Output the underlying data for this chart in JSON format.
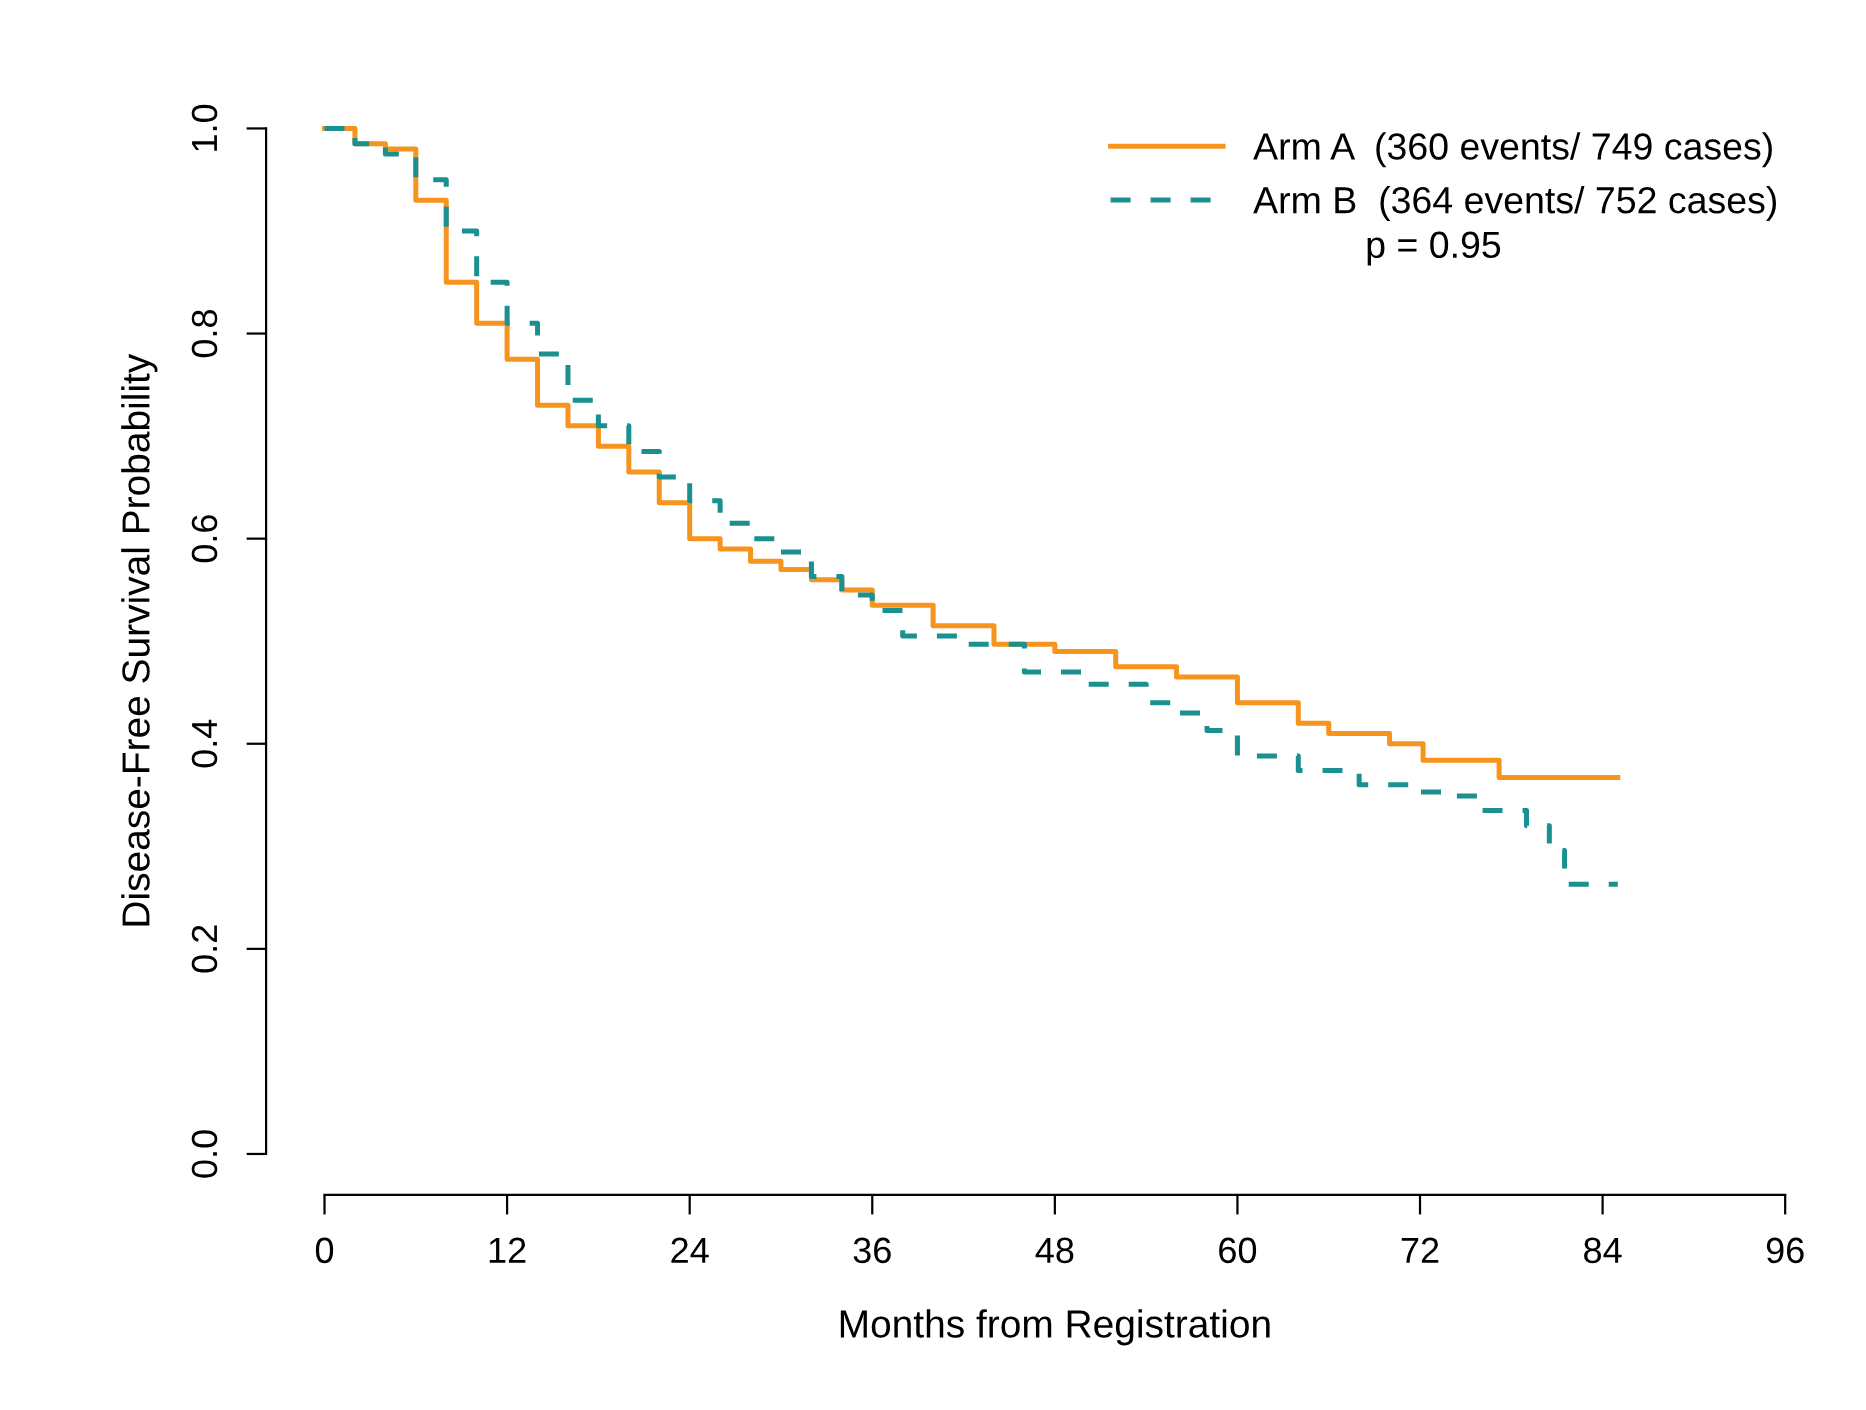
{
  "chart_data": {
    "type": "step",
    "xlabel": "Months from Registration",
    "ylabel": "Disease-Free Survival Probability",
    "xlim": [
      0,
      96
    ],
    "ylim": [
      0,
      1
    ],
    "xticks": [
      0,
      12,
      24,
      36,
      48,
      60,
      72,
      84,
      96
    ],
    "yticks": [
      {
        "value": 0,
        "label": "0.0"
      },
      {
        "value": 0.2,
        "label": "0.2"
      },
      {
        "value": 0.4,
        "label": "0.4"
      },
      {
        "value": 0.6,
        "label": "0.6"
      },
      {
        "value": 0.8,
        "label": "0.8"
      },
      {
        "value": 1,
        "label": "1.0"
      }
    ],
    "grid": false,
    "legend": "top right",
    "annotations": [
      "p = 0.95"
    ],
    "series": [
      {
        "name": "Arm A  (360 events/ 749 cases)",
        "color": "#f7941d",
        "line_style": "solid",
        "x": [
          0,
          2,
          4,
          6,
          8,
          10,
          12,
          14,
          16,
          18,
          20,
          22,
          24,
          26,
          28,
          30,
          32,
          34,
          36,
          40,
          44,
          48,
          52,
          56,
          60,
          64,
          66,
          70,
          72.2,
          77.2,
          85
        ],
        "values": [
          1.0,
          0.985,
          0.98,
          0.93,
          0.85,
          0.81,
          0.775,
          0.73,
          0.71,
          0.69,
          0.665,
          0.635,
          0.6,
          0.59,
          0.578,
          0.57,
          0.56,
          0.55,
          0.535,
          0.515,
          0.497,
          0.49,
          0.475,
          0.465,
          0.44,
          0.42,
          0.41,
          0.4,
          0.384,
          0.367,
          0.367
        ]
      },
      {
        "name": "Arm B  (364 events/ 752 cases)",
        "color": "#1a9090",
        "line_style": "dashed",
        "x": [
          0,
          2,
          4,
          6,
          8,
          10,
          12,
          14,
          16,
          18,
          20,
          22,
          24,
          26,
          28,
          30,
          32,
          34,
          36,
          38,
          42,
          46,
          50,
          54,
          56,
          58,
          60,
          64,
          68,
          72,
          74,
          76,
          79,
          80.5,
          81.5,
          85
        ],
        "values": [
          1.0,
          0.985,
          0.975,
          0.95,
          0.9,
          0.85,
          0.81,
          0.78,
          0.735,
          0.71,
          0.685,
          0.66,
          0.637,
          0.615,
          0.6,
          0.587,
          0.563,
          0.545,
          0.53,
          0.505,
          0.497,
          0.47,
          0.458,
          0.44,
          0.43,
          0.413,
          0.388,
          0.374,
          0.36,
          0.353,
          0.349,
          0.335,
          0.32,
          0.296,
          0.263,
          0.263
        ]
      }
    ]
  }
}
